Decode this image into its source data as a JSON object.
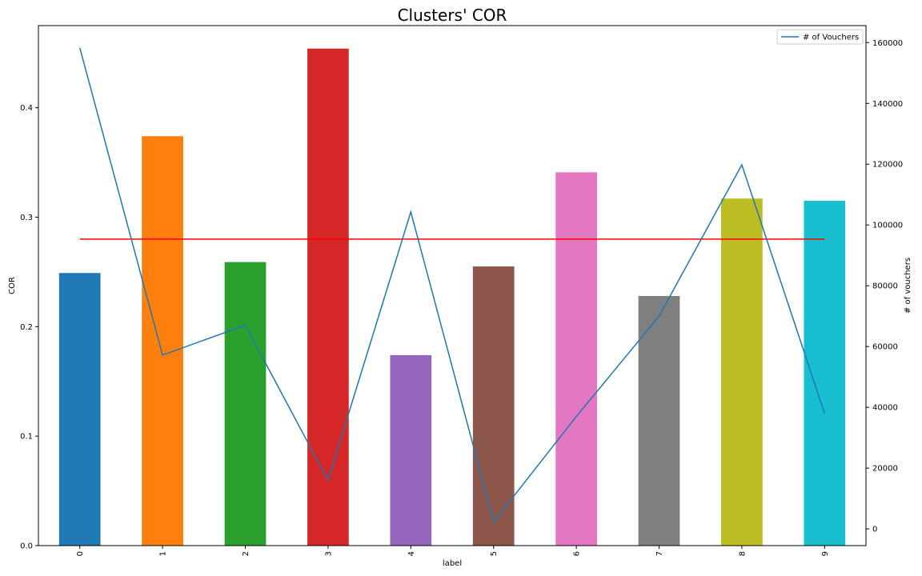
{
  "chart_data": {
    "type": "bar",
    "title": "Clusters' COR",
    "xlabel": "label",
    "ylabel": "COR",
    "y2label": "# of vouchers",
    "categories": [
      "0",
      "1",
      "2",
      "3",
      "4",
      "5",
      "6",
      "7",
      "8",
      "9"
    ],
    "values": [
      0.249,
      0.374,
      0.259,
      0.454,
      0.174,
      0.255,
      0.341,
      0.228,
      0.317,
      0.315
    ],
    "bar_colors": [
      "#1f77b4",
      "#ff7f0e",
      "#2ca02c",
      "#d62728",
      "#9467bd",
      "#8c564b",
      "#e377c2",
      "#7f7f7f",
      "#bcbd22",
      "#17becf"
    ],
    "ylim": [
      0.0,
      0.475
    ],
    "yticks": [
      "0.0",
      "0.1",
      "0.2",
      "0.3",
      "0.4"
    ],
    "reference_line": {
      "value": 0.28,
      "color": "#ff0000"
    },
    "line_series": {
      "name": "# of Vouchers",
      "color": "#1f77b4",
      "values": [
        158300,
        57200,
        67000,
        16000,
        104300,
        2300,
        37000,
        70000,
        119800,
        38000
      ]
    },
    "y2lim": [
      -5500,
      165600
    ],
    "y2ticks": [
      "0",
      "20000",
      "40000",
      "60000",
      "80000",
      "100000",
      "120000",
      "140000",
      "160000"
    ],
    "legend_position": "top-right",
    "grid": false
  }
}
